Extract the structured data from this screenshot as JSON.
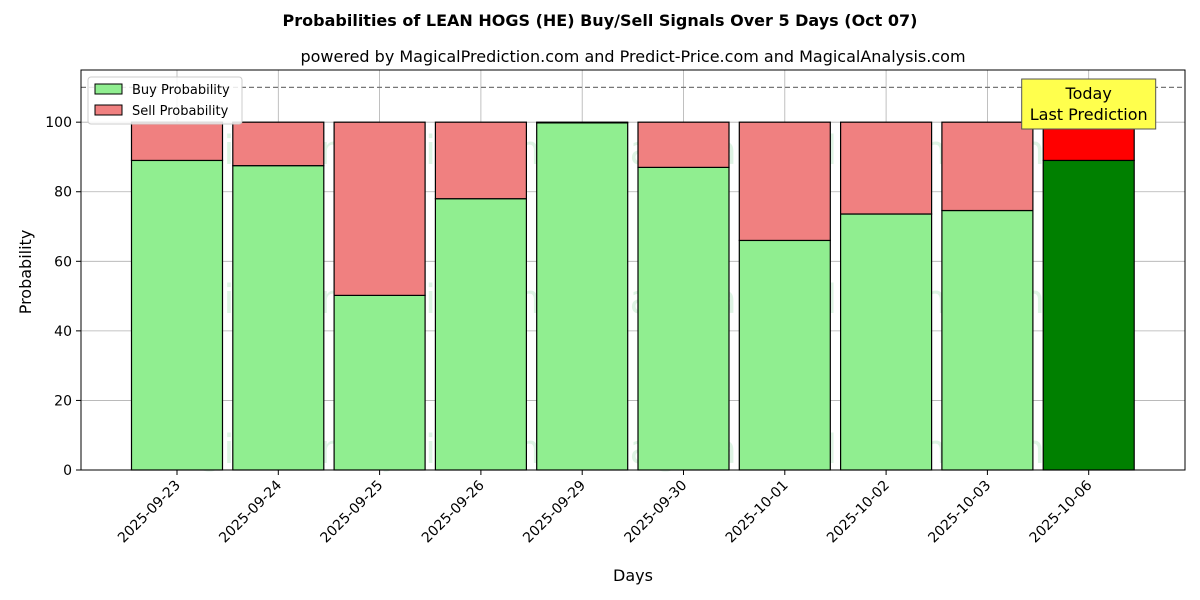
{
  "chart_data": {
    "type": "bar",
    "stacked": true,
    "title": "Probabilities of LEAN HOGS (HE) Buy/Sell Signals Over 5 Days (Oct 07)",
    "subtitle": "powered by MagicalPrediction.com and Predict-Price.com and MagicalAnalysis.com",
    "xlabel": "Days",
    "ylabel": "Probability",
    "ylim": [
      0,
      115
    ],
    "yticks": [
      0,
      20,
      40,
      60,
      80,
      100
    ],
    "grid": true,
    "legend_position": "top-left",
    "categories": [
      "2025-09-23",
      "2025-09-24",
      "2025-09-25",
      "2025-09-26",
      "2025-09-29",
      "2025-09-30",
      "2025-10-01",
      "2025-10-02",
      "2025-10-03",
      "2025-10-06"
    ],
    "series": [
      {
        "name": "Buy Probability",
        "color": "#90ee90",
        "values": [
          89,
          87.5,
          50.2,
          78,
          99.8,
          87,
          66,
          73.6,
          74.6,
          89
        ]
      },
      {
        "name": "Sell Probability",
        "color": "#f08080",
        "values": [
          11,
          12.5,
          49.8,
          22,
          0.2,
          13,
          34,
          26.4,
          25.4,
          11
        ]
      }
    ],
    "highlight": {
      "index": 9,
      "buy_color": "#008000",
      "sell_color": "#ff0000"
    },
    "reference_line": {
      "y": 110,
      "style": "dashed"
    },
    "annotation": {
      "lines": [
        "Today",
        "Last Prediction"
      ],
      "background": "#ffff4d"
    },
    "watermarks": [
      "MagicalAnalysis.com",
      "MagicalPrediction.com"
    ]
  }
}
